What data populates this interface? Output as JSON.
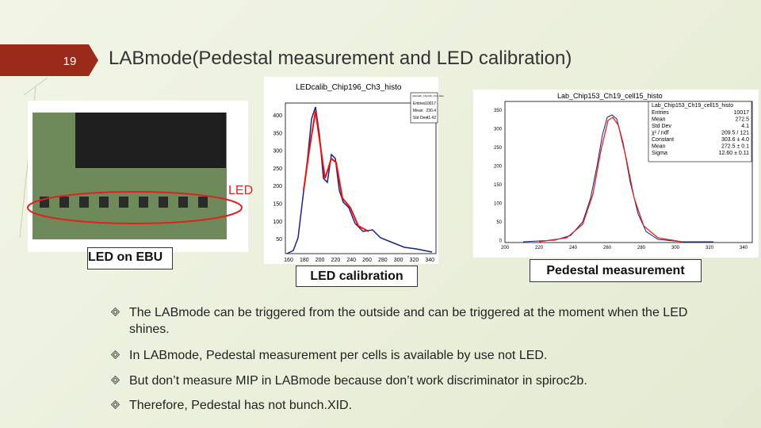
{
  "slide": {
    "number": "19",
    "title": "LABmode(Pedestal measurement and LED calibration)"
  },
  "photo": {
    "led_label": "LED",
    "caption": "LED on EBU"
  },
  "led_histogram": {
    "title": "LEDcalib_Chip196_Ch3_histo",
    "stats_header": "LEDcalib_Chip196_Ch3_histo",
    "stats": [
      [
        "Entries",
        "10017"
      ],
      [
        "Mean",
        "230.4"
      ],
      [
        "Std Dev",
        "41.42"
      ]
    ],
    "yticks": [
      "400",
      "350",
      "300",
      "250",
      "200",
      "150",
      "100",
      "50"
    ],
    "xticks": [
      "160",
      "180",
      "200",
      "220",
      "240",
      "260",
      "280",
      "300",
      "320",
      "340"
    ],
    "caption": "LED calibration"
  },
  "pedestal_histogram": {
    "title": "Lab_Chip153_Ch19_cell15_histo",
    "stats_header": "Lab_Chip153_Ch19_cell15_histo",
    "stats": [
      [
        "Entries",
        "10017"
      ],
      [
        "Mean",
        "272.5"
      ],
      [
        "Std Dev",
        "4.1"
      ],
      [
        "χ² / ndf",
        "209.5 / 121"
      ],
      [
        "Constant",
        "303.6 ± 4.0"
      ],
      [
        "Mean",
        "272.5 ± 0.1"
      ],
      [
        "Sigma",
        "12.60 ± 0.11"
      ]
    ],
    "yticks": [
      "350",
      "300",
      "250",
      "200",
      "150",
      "100",
      "50",
      "0"
    ],
    "xticks": [
      "200",
      "220",
      "240",
      "260",
      "280",
      "300",
      "320",
      "340"
    ],
    "caption": "Pedestal measurement"
  },
  "bullets": [
    "The LABmode can be triggered from the outside and can be triggered at the moment when the LED shines.",
    "In LABmode, Pedestal measurement per cells is available by use not LED.",
    "But don’t measure MIP in LABmode because don’t work discriminator in spiroc2b.",
    "Therefore, Pedestal has not bunch.XID."
  ]
}
